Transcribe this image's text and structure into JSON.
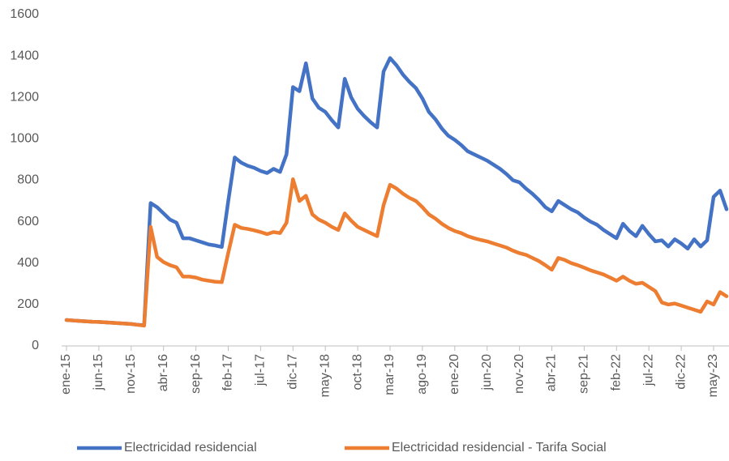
{
  "chart_data": {
    "type": "line",
    "categories": [
      "ene-15",
      null,
      null,
      null,
      null,
      "jun-15",
      null,
      null,
      null,
      null,
      "nov-15",
      null,
      null,
      null,
      null,
      "abr-16",
      null,
      null,
      null,
      null,
      "sep-16",
      null,
      null,
      null,
      null,
      "feb-17",
      null,
      null,
      null,
      null,
      "jul-17",
      null,
      null,
      null,
      null,
      "dic-17",
      null,
      null,
      null,
      null,
      "may-18",
      null,
      null,
      null,
      null,
      "oct-18",
      null,
      null,
      null,
      null,
      "mar-19",
      null,
      null,
      null,
      null,
      "ago-19",
      null,
      null,
      null,
      null,
      "ene-20",
      null,
      null,
      null,
      null,
      "jun-20",
      null,
      null,
      null,
      null,
      "nov-20",
      null,
      null,
      null,
      null,
      "abr-21",
      null,
      null,
      null,
      null,
      "sep-21",
      null,
      null,
      null,
      null,
      "feb-22",
      null,
      null,
      null,
      null,
      "jul-22",
      null,
      null,
      null,
      null,
      "dic-22",
      null,
      null,
      null,
      null,
      "may-23",
      null,
      null
    ],
    "series": [
      {
        "name": "Electricidad residencial",
        "color": "#4472c4",
        "values": [
          125,
          123,
          121,
          119,
          117,
          116,
          114,
          112,
          110,
          108,
          106,
          102,
          100,
          690,
          670,
          640,
          610,
          595,
          520,
          520,
          510,
          500,
          490,
          485,
          478,
          700,
          910,
          885,
          870,
          860,
          845,
          835,
          855,
          840,
          925,
          1250,
          1230,
          1365,
          1195,
          1150,
          1130,
          1090,
          1055,
          1290,
          1200,
          1145,
          1110,
          1080,
          1055,
          1325,
          1390,
          1355,
          1310,
          1275,
          1245,
          1195,
          1130,
          1095,
          1050,
          1015,
          995,
          970,
          940,
          925,
          910,
          895,
          875,
          855,
          830,
          800,
          790,
          760,
          735,
          705,
          670,
          650,
          700,
          680,
          660,
          645,
          620,
          600,
          585,
          560,
          540,
          520,
          590,
          555,
          530,
          580,
          540,
          505,
          510,
          480,
          515,
          495,
          470,
          515,
          480,
          510,
          720,
          750,
          660
        ]
      },
      {
        "name": "Electricidad residencial - Tarifa Social",
        "color": "#ed7d31",
        "values": [
          125,
          123,
          121,
          119,
          117,
          116,
          114,
          112,
          110,
          108,
          106,
          102,
          98,
          575,
          430,
          405,
          390,
          380,
          335,
          335,
          330,
          320,
          315,
          310,
          308,
          450,
          585,
          570,
          565,
          558,
          550,
          540,
          550,
          545,
          595,
          805,
          700,
          725,
          635,
          610,
          595,
          575,
          560,
          640,
          605,
          575,
          560,
          545,
          530,
          680,
          778,
          760,
          735,
          715,
          700,
          670,
          635,
          615,
          590,
          570,
          555,
          545,
          530,
          520,
          512,
          505,
          495,
          485,
          475,
          460,
          448,
          440,
          425,
          410,
          390,
          368,
          425,
          415,
          400,
          390,
          378,
          365,
          355,
          345,
          330,
          315,
          335,
          315,
          300,
          305,
          285,
          265,
          210,
          200,
          205,
          195,
          185,
          175,
          165,
          215,
          200,
          260,
          240
        ]
      }
    ],
    "ylim": [
      0,
      1600
    ],
    "yticks": [
      0,
      200,
      400,
      600,
      800,
      1000,
      1200,
      1400,
      1600
    ],
    "grid": false,
    "legend": "bottom"
  }
}
